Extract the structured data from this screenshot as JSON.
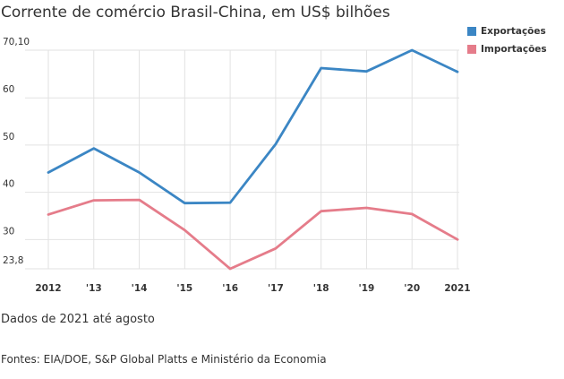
{
  "chart_data": {
    "type": "line",
    "title": "Corrente de comércio Brasil-China, em US$ bilhões",
    "x": [
      "2012",
      "'13",
      "'14",
      "'15",
      "'16",
      "'17",
      "'18",
      "'19",
      "'20",
      "2021"
    ],
    "series": [
      {
        "name": "Exportações",
        "color": "#3b86c4",
        "values": [
          44.2,
          49.3,
          44.2,
          37.7,
          37.8,
          50.2,
          66.3,
          65.6,
          70.1,
          65.5
        ]
      },
      {
        "name": "Importações",
        "color": "#e57c8a",
        "values": [
          35.3,
          38.3,
          38.4,
          32.0,
          23.8,
          28.1,
          36.0,
          36.7,
          35.4,
          30.0
        ]
      }
    ],
    "yticks": [
      "70,10",
      "60",
      "50",
      "40",
      "30",
      "23,8"
    ],
    "ytick_values": [
      70.1,
      60,
      50,
      40,
      30,
      23.8
    ],
    "ylim": [
      23.8,
      70.1
    ],
    "grid": true,
    "legend": "top-right"
  },
  "note": "Dados de 2021 até agosto",
  "source": "Fontes: EIA/DOE, S&P Global Platts e Ministério da Economia"
}
